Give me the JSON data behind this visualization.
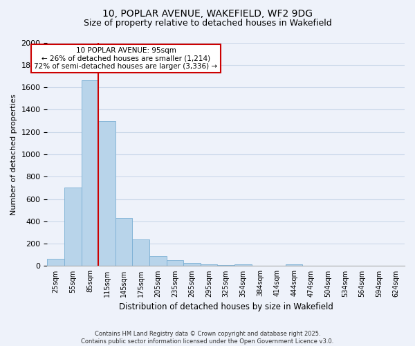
{
  "title1": "10, POPLAR AVENUE, WAKEFIELD, WF2 9DG",
  "title2": "Size of property relative to detached houses in Wakefield",
  "xlabel": "Distribution of detached houses by size in Wakefield",
  "ylabel": "Number of detached properties",
  "bar_labels": [
    "25sqm",
    "55sqm",
    "85sqm",
    "115sqm",
    "145sqm",
    "175sqm",
    "205sqm",
    "235sqm",
    "265sqm",
    "295sqm",
    "325sqm",
    "354sqm",
    "384sqm",
    "414sqm",
    "444sqm",
    "474sqm",
    "504sqm",
    "534sqm",
    "564sqm",
    "594sqm",
    "624sqm"
  ],
  "bar_heights": [
    65,
    700,
    1660,
    1300,
    430,
    240,
    90,
    50,
    25,
    15,
    10,
    15,
    0,
    0,
    15,
    0,
    0,
    0,
    0,
    0,
    0
  ],
  "bar_color": "#b8d4ea",
  "bar_edge_color": "#7aafd4",
  "grid_color": "#ccd9ea",
  "background_color": "#eef2fa",
  "vline_x": 2.5,
  "vline_color": "#cc0000",
  "annotation_title": "10 POPLAR AVENUE: 95sqm",
  "annotation_line1": "← 26% of detached houses are smaller (1,214)",
  "annotation_line2": "72% of semi-detached houses are larger (3,336) →",
  "annotation_box_facecolor": "#ffffff",
  "annotation_box_edgecolor": "#cc0000",
  "ylim": [
    0,
    2000
  ],
  "yticks": [
    0,
    200,
    400,
    600,
    800,
    1000,
    1200,
    1400,
    1600,
    1800,
    2000
  ],
  "footnote1": "Contains HM Land Registry data © Crown copyright and database right 2025.",
  "footnote2": "Contains public sector information licensed under the Open Government Licence v3.0."
}
